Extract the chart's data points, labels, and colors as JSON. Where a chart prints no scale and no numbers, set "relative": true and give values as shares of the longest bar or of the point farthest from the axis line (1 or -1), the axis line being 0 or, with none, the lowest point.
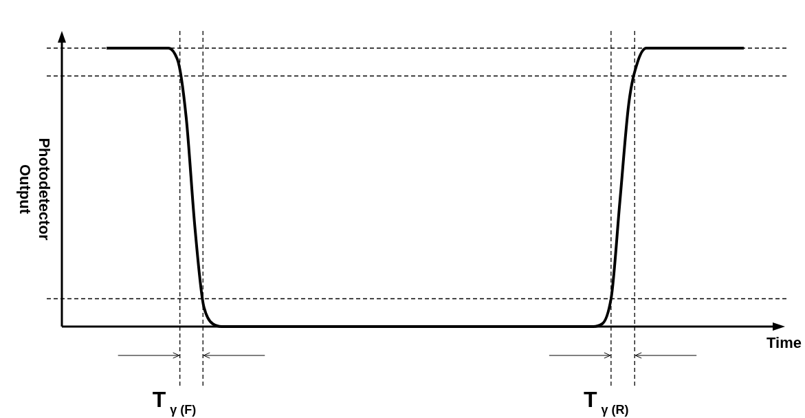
{
  "chart_data": {
    "type": "line",
    "relative": true,
    "xlabel": "Time",
    "ylabel": "Photodetector Output",
    "categories": [
      null,
      null,
      null,
      null,
      null,
      null,
      null,
      null,
      null,
      null,
      null,
      null,
      null,
      null,
      null,
      null,
      null,
      null,
      null,
      null,
      null,
      null,
      null,
      null,
      null,
      null,
      null,
      null,
      null,
      null,
      null,
      null,
      null,
      null,
      null,
      null,
      null,
      null,
      null,
      null,
      null,
      null,
      null,
      null,
      null,
      null,
      null,
      null,
      null,
      null,
      null,
      null,
      null,
      null,
      null,
      null,
      null,
      null,
      null,
      null,
      null,
      null,
      null,
      null,
      null,
      null,
      null,
      null,
      null,
      null,
      null,
      null,
      null
    ],
    "series": [
      {
        "color": "#000000",
        "values": [
          1,
          1,
          1,
          1,
          1,
          1,
          1,
          1,
          0.96,
          0.75,
          0.35,
          0.07,
          0.01,
          0,
          0,
          0,
          0,
          0,
          0,
          0,
          0,
          0,
          0,
          0,
          0,
          0,
          0,
          0,
          0,
          0,
          0,
          0,
          0,
          0,
          0,
          0,
          0,
          0,
          0,
          0,
          0,
          0,
          0,
          0,
          0,
          0,
          0,
          0,
          0,
          0,
          0,
          0,
          0,
          0,
          0,
          0,
          0.01,
          0.1,
          0.45,
          0.8,
          0.95,
          1,
          1,
          1,
          1,
          1,
          1,
          1,
          1,
          1,
          1,
          1,
          1
        ]
      }
    ],
    "annotations": [
      "T$_{γ (F)}$",
      "T$_{γ (R)}$"
    ],
    "marker": "none",
    "line_style": "solid"
  }
}
